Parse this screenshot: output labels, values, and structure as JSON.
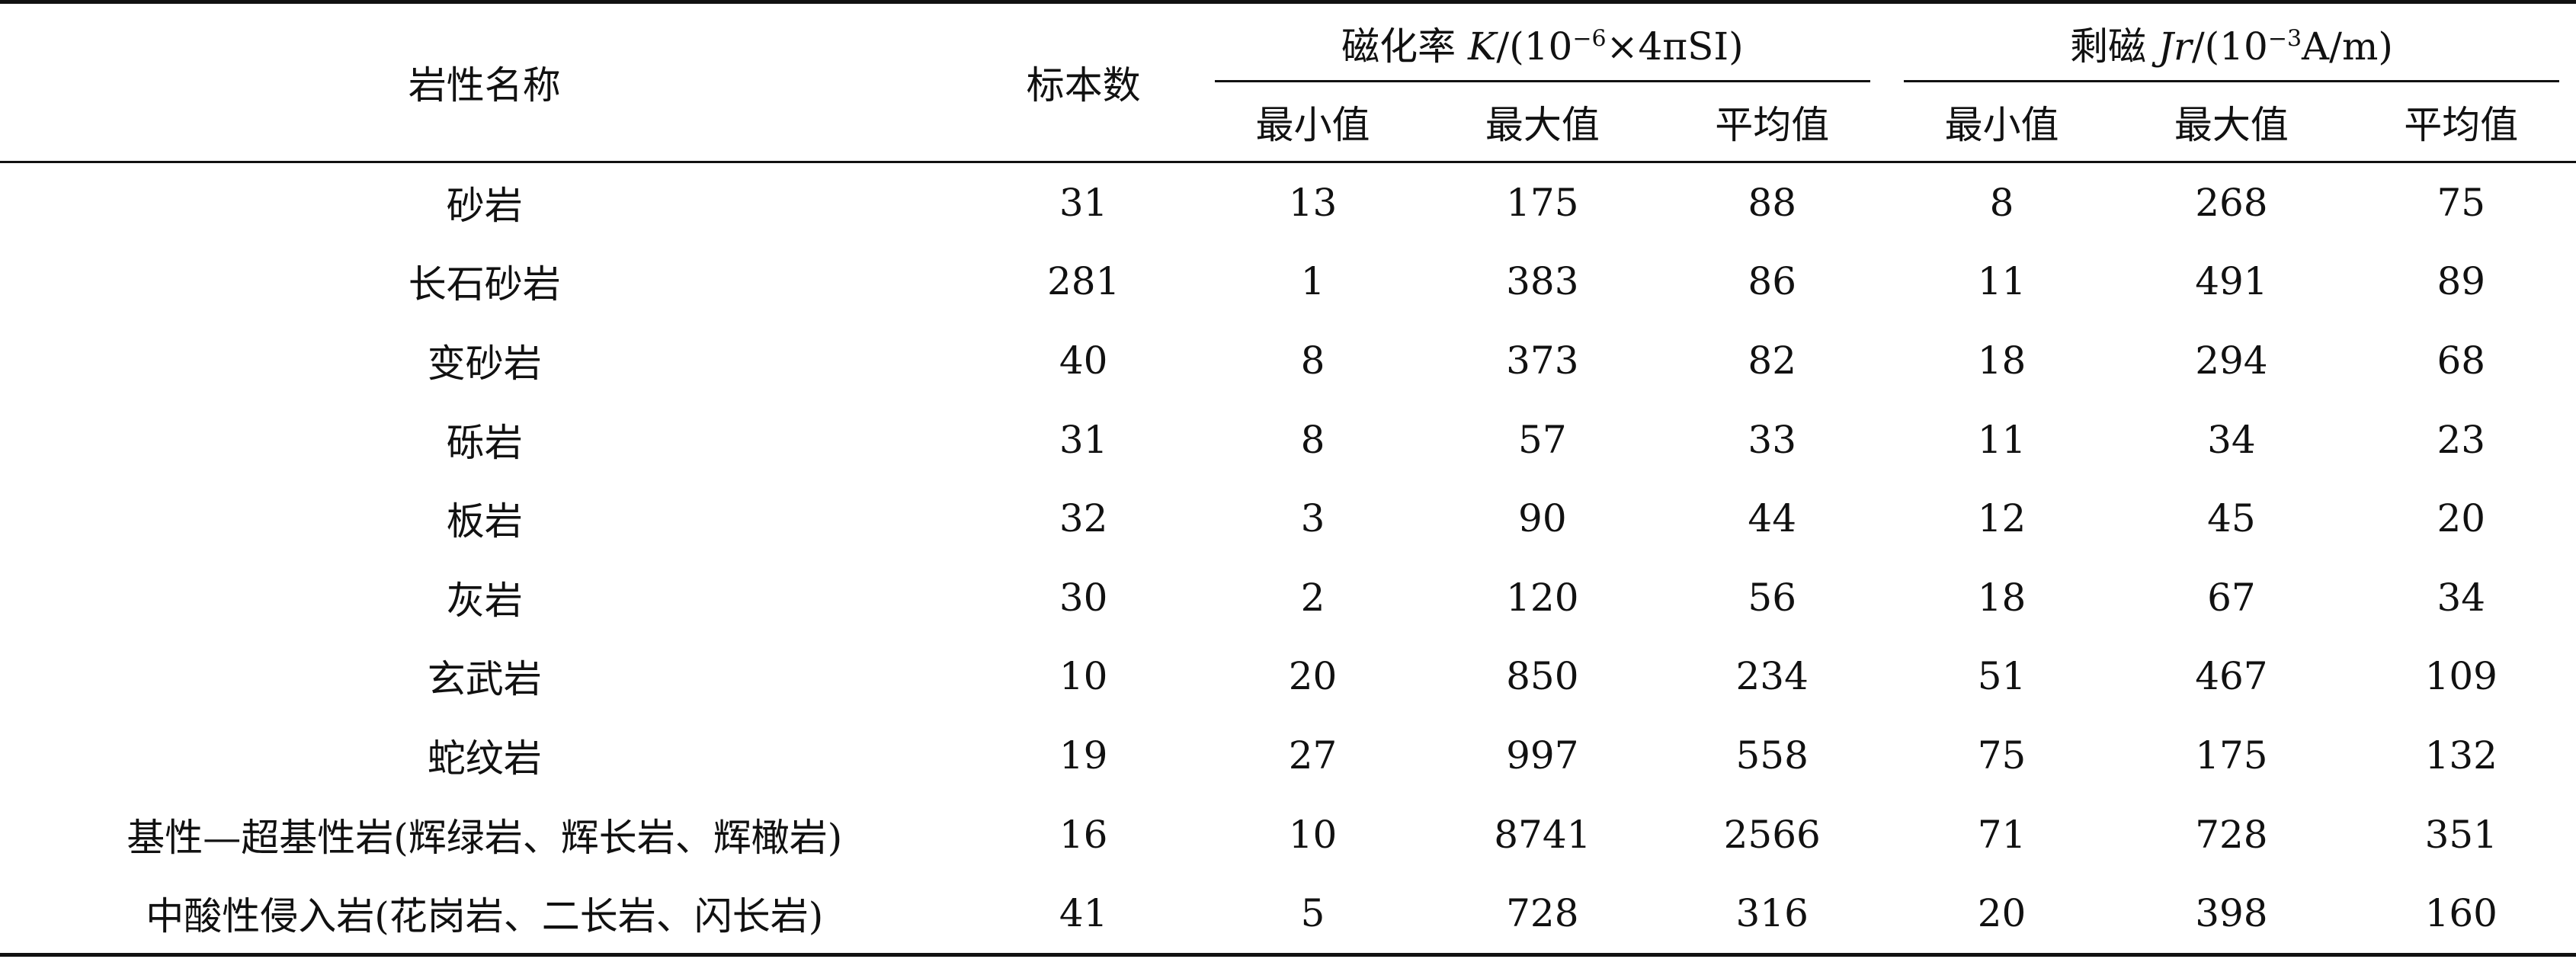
{
  "table": {
    "headers": {
      "name": "岩性名称",
      "count": "标本数",
      "susceptibility": {
        "label_prefix": "磁化率 ",
        "symbol": "K",
        "unit_open": "/(10",
        "exponent": "−6",
        "unit_close": "×4πSI)"
      },
      "remanence": {
        "label_prefix": "剩磁 ",
        "symbol": "Jr",
        "unit_open": "/(10",
        "exponent": "−3",
        "unit_close": "A/m)"
      },
      "sub": {
        "min": "最小值",
        "max": "最大值",
        "avg": "平均值"
      }
    },
    "rows": [
      {
        "name": "砂岩",
        "count": "31",
        "k_min": "13",
        "k_max": "175",
        "k_avg": "88",
        "jr_min": "8",
        "jr_max": "268",
        "jr_avg": "75"
      },
      {
        "name": "长石砂岩",
        "count": "281",
        "k_min": "1",
        "k_max": "383",
        "k_avg": "86",
        "jr_min": "11",
        "jr_max": "491",
        "jr_avg": "89"
      },
      {
        "name": "变砂岩",
        "count": "40",
        "k_min": "8",
        "k_max": "373",
        "k_avg": "82",
        "jr_min": "18",
        "jr_max": "294",
        "jr_avg": "68"
      },
      {
        "name": "砾岩",
        "count": "31",
        "k_min": "8",
        "k_max": "57",
        "k_avg": "33",
        "jr_min": "11",
        "jr_max": "34",
        "jr_avg": "23"
      },
      {
        "name": "板岩",
        "count": "32",
        "k_min": "3",
        "k_max": "90",
        "k_avg": "44",
        "jr_min": "12",
        "jr_max": "45",
        "jr_avg": "20"
      },
      {
        "name": "灰岩",
        "count": "30",
        "k_min": "2",
        "k_max": "120",
        "k_avg": "56",
        "jr_min": "18",
        "jr_max": "67",
        "jr_avg": "34"
      },
      {
        "name": "玄武岩",
        "count": "10",
        "k_min": "20",
        "k_max": "850",
        "k_avg": "234",
        "jr_min": "51",
        "jr_max": "467",
        "jr_avg": "109"
      },
      {
        "name": "蛇纹岩",
        "count": "19",
        "k_min": "27",
        "k_max": "997",
        "k_avg": "558",
        "jr_min": "75",
        "jr_max": "175",
        "jr_avg": "132"
      },
      {
        "name": "基性—超基性岩(辉绿岩、辉长岩、辉橄岩)",
        "count": "16",
        "k_min": "10",
        "k_max": "8741",
        "k_avg": "2566",
        "jr_min": "71",
        "jr_max": "728",
        "jr_avg": "351"
      },
      {
        "name": "中酸性侵入岩(花岗岩、二长岩、闪长岩)",
        "count": "41",
        "k_min": "5",
        "k_max": "728",
        "k_avg": "316",
        "jr_min": "20",
        "jr_max": "398",
        "jr_avg": "160"
      }
    ]
  }
}
